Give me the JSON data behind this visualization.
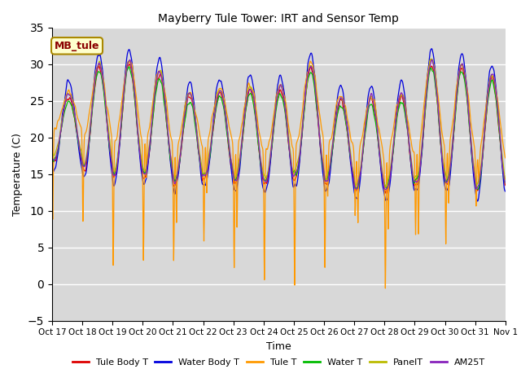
{
  "title": "Mayberry Tule Tower: IRT and Sensor Temp",
  "xlabel": "Time",
  "ylabel": "Temperature (C)",
  "ylim": [
    -5,
    35
  ],
  "annotation_text": "MB_tule",
  "legend_labels": [
    "Tule Body T",
    "Water Body T",
    "Tule T",
    "Water T",
    "PanelT",
    "AM25T"
  ],
  "line_colors": [
    "#dd0000",
    "#0000dd",
    "#ff9900",
    "#00bb00",
    "#bbbb00",
    "#8822bb"
  ],
  "xtick_labels": [
    "Oct 17",
    "Oct 18",
    "Oct 19",
    "Oct 20",
    "Oct 21",
    "Oct 22",
    "Oct 23",
    "Oct 24",
    "Oct 25",
    "Oct 26",
    "Oct 27",
    "Oct 28",
    "Oct 29",
    "Oct 30",
    "Oct 31",
    "Nov 1"
  ],
  "background_color": "#d8d8d8",
  "yticks": [
    -5,
    0,
    5,
    10,
    15,
    20,
    25,
    30,
    35
  ],
  "n_points": 1440,
  "n_days": 15
}
